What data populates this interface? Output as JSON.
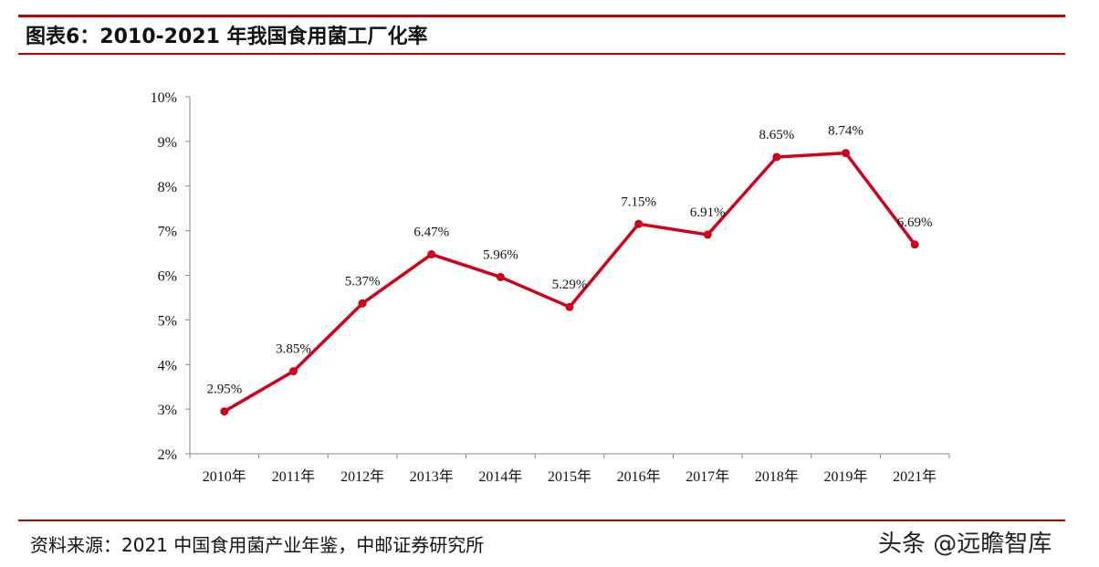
{
  "header": {
    "figure_title": "图表6：2010-2021 年我国食用菌工厂化率"
  },
  "chart_data": {
    "type": "line",
    "title": "",
    "xlabel": "",
    "ylabel": "",
    "categories": [
      "2010年",
      "2011年",
      "2012年",
      "2013年",
      "2014年",
      "2015年",
      "2016年",
      "2017年",
      "2018年",
      "2019年",
      "2021年"
    ],
    "series": [
      {
        "values": [
          2.95,
          3.85,
          5.37,
          6.47,
          5.96,
          5.29,
          7.15,
          6.91,
          8.65,
          8.74,
          6.69
        ],
        "labels": [
          "2.95%",
          "3.85%",
          "5.37%",
          "6.47%",
          "5.96%",
          "5.29%",
          "7.15%",
          "6.91%",
          "8.65%",
          "8.74%",
          "6.69%"
        ]
      }
    ],
    "ylim": [
      2,
      10
    ],
    "y_ticks": [
      2,
      3,
      4,
      5,
      6,
      7,
      8,
      9,
      10
    ],
    "y_tick_labels": [
      "2%",
      "3%",
      "4%",
      "5%",
      "6%",
      "7%",
      "8%",
      "9%",
      "10%"
    ],
    "grid": false,
    "legend": "none",
    "line_color": "#d0021b"
  },
  "footer": {
    "source": "资料来源：2021 中国食用菌产业年鉴，中邮证券研究所",
    "watermark": "头条 @远瞻智库"
  }
}
